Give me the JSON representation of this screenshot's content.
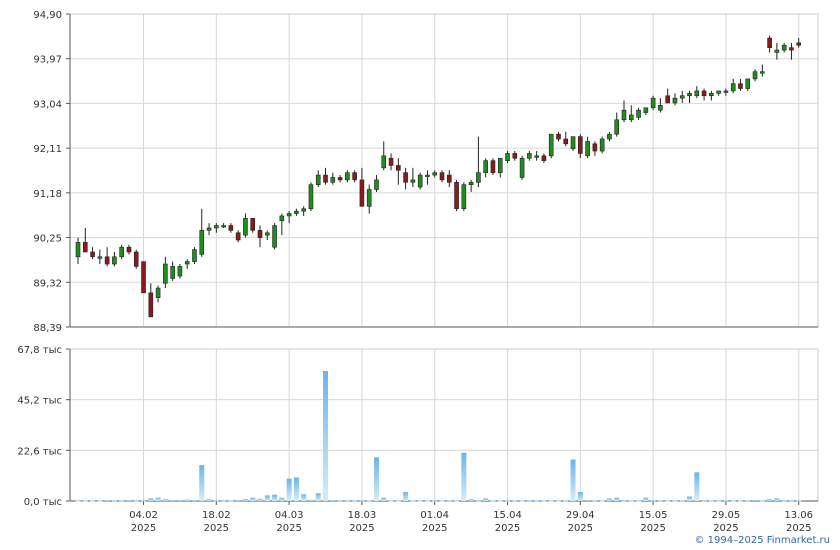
{
  "chart_data": {
    "type": "candlestick+bar",
    "price_axis": {
      "ticks": [
        "88,39",
        "89,32",
        "90,25",
        "91,18",
        "92,11",
        "93,04",
        "93,97",
        "94,90"
      ],
      "values": [
        88.39,
        89.32,
        90.25,
        91.18,
        92.11,
        93.04,
        93.97,
        94.9
      ],
      "range": [
        88.39,
        94.9
      ]
    },
    "volume_axis": {
      "ticks": [
        "0,0 тыс",
        "22,6 тыс",
        "45,2 тыс",
        "67,8 тыс"
      ],
      "values": [
        0,
        22.6,
        45.2,
        67.8
      ],
      "range": [
        0,
        67.8
      ]
    },
    "x_ticks": [
      {
        "day": 9,
        "label": "04.02",
        "year": "2025"
      },
      {
        "day": 19,
        "label": "18.02",
        "year": "2025"
      },
      {
        "day": 29,
        "label": "04.03",
        "year": "2025"
      },
      {
        "day": 39,
        "label": "18.03",
        "year": "2025"
      },
      {
        "day": 49,
        "label": "01.04",
        "year": "2025"
      },
      {
        "day": 59,
        "label": "15.04",
        "year": "2025"
      },
      {
        "day": 69,
        "label": "29.04",
        "year": "2025"
      },
      {
        "day": 79,
        "label": "15.05",
        "year": "2025"
      },
      {
        "day": 89,
        "label": "29.05",
        "year": "2025"
      },
      {
        "day": 99,
        "label": "13.06",
        "year": "2025"
      }
    ],
    "candles": [
      [
        89.85,
        90.25,
        89.7,
        90.15
      ],
      [
        90.15,
        90.45,
        89.95,
        89.95
      ],
      [
        89.95,
        90.05,
        89.8,
        89.85
      ],
      [
        89.85,
        90.0,
        89.7,
        89.85
      ],
      [
        89.85,
        90.05,
        89.65,
        89.7
      ],
      [
        89.7,
        89.95,
        89.65,
        89.85
      ],
      [
        89.85,
        90.1,
        89.8,
        90.05
      ],
      [
        90.05,
        90.1,
        89.9,
        89.95
      ],
      [
        89.95,
        90.0,
        89.6,
        89.65
      ],
      [
        89.75,
        89.75,
        89.1,
        89.1
      ],
      [
        89.1,
        89.3,
        88.6,
        88.6
      ],
      [
        89.0,
        89.25,
        88.9,
        89.2
      ],
      [
        89.3,
        89.85,
        89.2,
        89.7
      ],
      [
        89.4,
        89.75,
        89.35,
        89.65
      ],
      [
        89.45,
        89.7,
        89.4,
        89.65
      ],
      [
        89.7,
        89.8,
        89.6,
        89.75
      ],
      [
        89.75,
        90.05,
        89.7,
        90.0
      ],
      [
        89.9,
        90.85,
        89.85,
        90.4
      ],
      [
        90.4,
        90.55,
        90.3,
        90.45
      ],
      [
        90.45,
        90.55,
        90.35,
        90.5
      ],
      [
        90.5,
        90.55,
        90.45,
        90.5
      ],
      [
        90.5,
        90.55,
        90.35,
        90.4
      ],
      [
        90.35,
        90.4,
        90.15,
        90.2
      ],
      [
        90.3,
        90.75,
        90.25,
        90.65
      ],
      [
        90.65,
        90.65,
        90.35,
        90.4
      ],
      [
        90.4,
        90.5,
        90.05,
        90.25
      ],
      [
        90.3,
        90.4,
        90.2,
        90.35
      ],
      [
        90.05,
        90.55,
        90.0,
        90.5
      ],
      [
        90.6,
        90.75,
        90.3,
        90.7
      ],
      [
        90.7,
        90.8,
        90.55,
        90.75
      ],
      [
        90.75,
        90.85,
        90.7,
        90.8
      ],
      [
        90.8,
        90.9,
        90.7,
        90.85
      ],
      [
        90.85,
        91.4,
        90.8,
        91.35
      ],
      [
        91.35,
        91.65,
        91.3,
        91.55
      ],
      [
        91.55,
        91.7,
        91.35,
        91.4
      ],
      [
        91.4,
        91.6,
        91.35,
        91.5
      ],
      [
        91.5,
        91.55,
        91.4,
        91.45
      ],
      [
        91.45,
        91.65,
        91.4,
        91.6
      ],
      [
        91.6,
        91.65,
        91.4,
        91.45
      ],
      [
        91.45,
        91.7,
        90.9,
        90.9
      ],
      [
        90.9,
        91.35,
        90.75,
        91.25
      ],
      [
        91.25,
        91.55,
        91.2,
        91.45
      ],
      [
        91.7,
        92.25,
        91.65,
        91.95
      ],
      [
        91.9,
        92.0,
        91.65,
        91.75
      ],
      [
        91.75,
        91.9,
        91.35,
        91.65
      ],
      [
        91.6,
        91.7,
        91.25,
        91.4
      ],
      [
        91.4,
        91.7,
        91.3,
        91.45
      ],
      [
        91.3,
        91.6,
        91.25,
        91.55
      ],
      [
        91.55,
        91.65,
        91.35,
        91.55
      ],
      [
        91.55,
        91.65,
        91.5,
        91.6
      ],
      [
        91.6,
        91.65,
        91.4,
        91.45
      ],
      [
        91.55,
        91.65,
        91.3,
        91.4
      ],
      [
        91.4,
        91.45,
        90.8,
        90.85
      ],
      [
        90.85,
        91.4,
        90.8,
        91.35
      ],
      [
        91.35,
        91.45,
        91.2,
        91.4
      ],
      [
        91.4,
        92.35,
        91.3,
        91.6
      ],
      [
        91.6,
        91.9,
        91.5,
        91.85
      ],
      [
        91.85,
        91.9,
        91.55,
        91.6
      ],
      [
        91.6,
        91.9,
        91.5,
        91.9
      ],
      [
        91.85,
        92.05,
        91.8,
        92.0
      ],
      [
        92.0,
        92.05,
        91.85,
        91.9
      ],
      [
        91.5,
        91.95,
        91.45,
        91.9
      ],
      [
        91.9,
        92.05,
        91.85,
        92.0
      ],
      [
        91.95,
        92.05,
        91.85,
        91.95
      ],
      [
        91.95,
        92.0,
        91.8,
        91.85
      ],
      [
        91.95,
        92.4,
        91.9,
        92.4
      ],
      [
        92.4,
        92.45,
        92.25,
        92.3
      ],
      [
        92.3,
        92.45,
        92.15,
        92.2
      ],
      [
        92.1,
        92.35,
        92.05,
        92.35
      ],
      [
        92.35,
        92.4,
        91.9,
        92.0
      ],
      [
        91.95,
        92.35,
        91.9,
        92.25
      ],
      [
        92.2,
        92.25,
        91.95,
        92.05
      ],
      [
        92.05,
        92.35,
        92.0,
        92.3
      ],
      [
        92.3,
        92.45,
        92.25,
        92.4
      ],
      [
        92.4,
        92.85,
        92.35,
        92.7
      ],
      [
        92.7,
        93.1,
        92.65,
        92.9
      ],
      [
        92.7,
        93.0,
        92.65,
        92.8
      ],
      [
        92.75,
        92.95,
        92.7,
        92.9
      ],
      [
        92.85,
        92.95,
        92.8,
        92.95
      ],
      [
        92.95,
        93.2,
        92.9,
        93.15
      ],
      [
        92.9,
        93.15,
        92.85,
        93.0
      ],
      [
        93.2,
        93.35,
        93.05,
        93.05
      ],
      [
        93.05,
        93.25,
        93.0,
        93.15
      ],
      [
        93.15,
        93.3,
        93.05,
        93.2
      ],
      [
        93.2,
        93.3,
        93.05,
        93.25
      ],
      [
        93.2,
        93.4,
        93.15,
        93.3
      ],
      [
        93.3,
        93.35,
        93.1,
        93.2
      ],
      [
        93.2,
        93.3,
        93.1,
        93.25
      ],
      [
        93.25,
        93.3,
        93.2,
        93.3
      ],
      [
        93.3,
        93.35,
        93.2,
        93.3
      ],
      [
        93.3,
        93.55,
        93.25,
        93.45
      ],
      [
        93.45,
        93.55,
        93.3,
        93.35
      ],
      [
        93.35,
        93.55,
        93.3,
        93.55
      ],
      [
        93.55,
        93.75,
        93.5,
        93.7
      ],
      [
        93.7,
        93.85,
        93.6,
        93.7
      ],
      [
        94.4,
        94.45,
        94.1,
        94.2
      ],
      [
        94.1,
        94.3,
        93.95,
        94.15
      ],
      [
        94.15,
        94.3,
        94.1,
        94.25
      ],
      [
        94.2,
        94.3,
        93.95,
        94.15
      ],
      [
        94.3,
        94.4,
        94.2,
        94.25
      ]
    ],
    "volume": [
      0.2,
      0.2,
      0.2,
      0.2,
      0.4,
      0.3,
      0.3,
      0.4,
      0.3,
      0.3,
      1.2,
      1.5,
      0.8,
      0.5,
      0.4,
      0.6,
      0.4,
      16.0,
      0.8,
      0.3,
      0.3,
      0.2,
      0.4,
      0.8,
      1.5,
      1.0,
      2.5,
      2.8,
      1.5,
      10.0,
      10.5,
      3.0,
      0.5,
      3.5,
      58.0,
      0.4,
      0.3,
      0.3,
      0.3,
      0.3,
      0.3,
      19.5,
      1.5,
      0.2,
      0.2,
      4.0,
      0.2,
      0.2,
      0.2,
      0.2,
      0.2,
      0.3,
      0.2,
      21.5,
      0.8,
      0.3,
      1.2,
      0.2,
      0.2,
      0.2,
      0.3,
      0.2,
      0.3,
      0.3,
      0.2,
      0.2,
      0.2,
      0.3,
      18.5,
      4.0,
      0.5,
      0.3,
      0.2,
      1.2,
      1.5,
      0.3,
      0.2,
      0.2,
      1.5,
      0.3,
      0.3,
      0.2,
      0.2,
      0.3,
      2.0,
      12.8,
      0.3,
      0.2,
      0.2,
      0.3,
      0.2,
      0.2,
      0.3,
      0.5,
      0.2,
      0.8,
      1.2,
      0.3,
      0.3,
      0.2
    ],
    "colors": {
      "up": "#228B22",
      "down": "#8B1A1A",
      "volume": "#6EB4E8",
      "grid": "#D8D8D8"
    }
  },
  "footer": {
    "text": "© 1994–2025 Finmarket.ru"
  }
}
